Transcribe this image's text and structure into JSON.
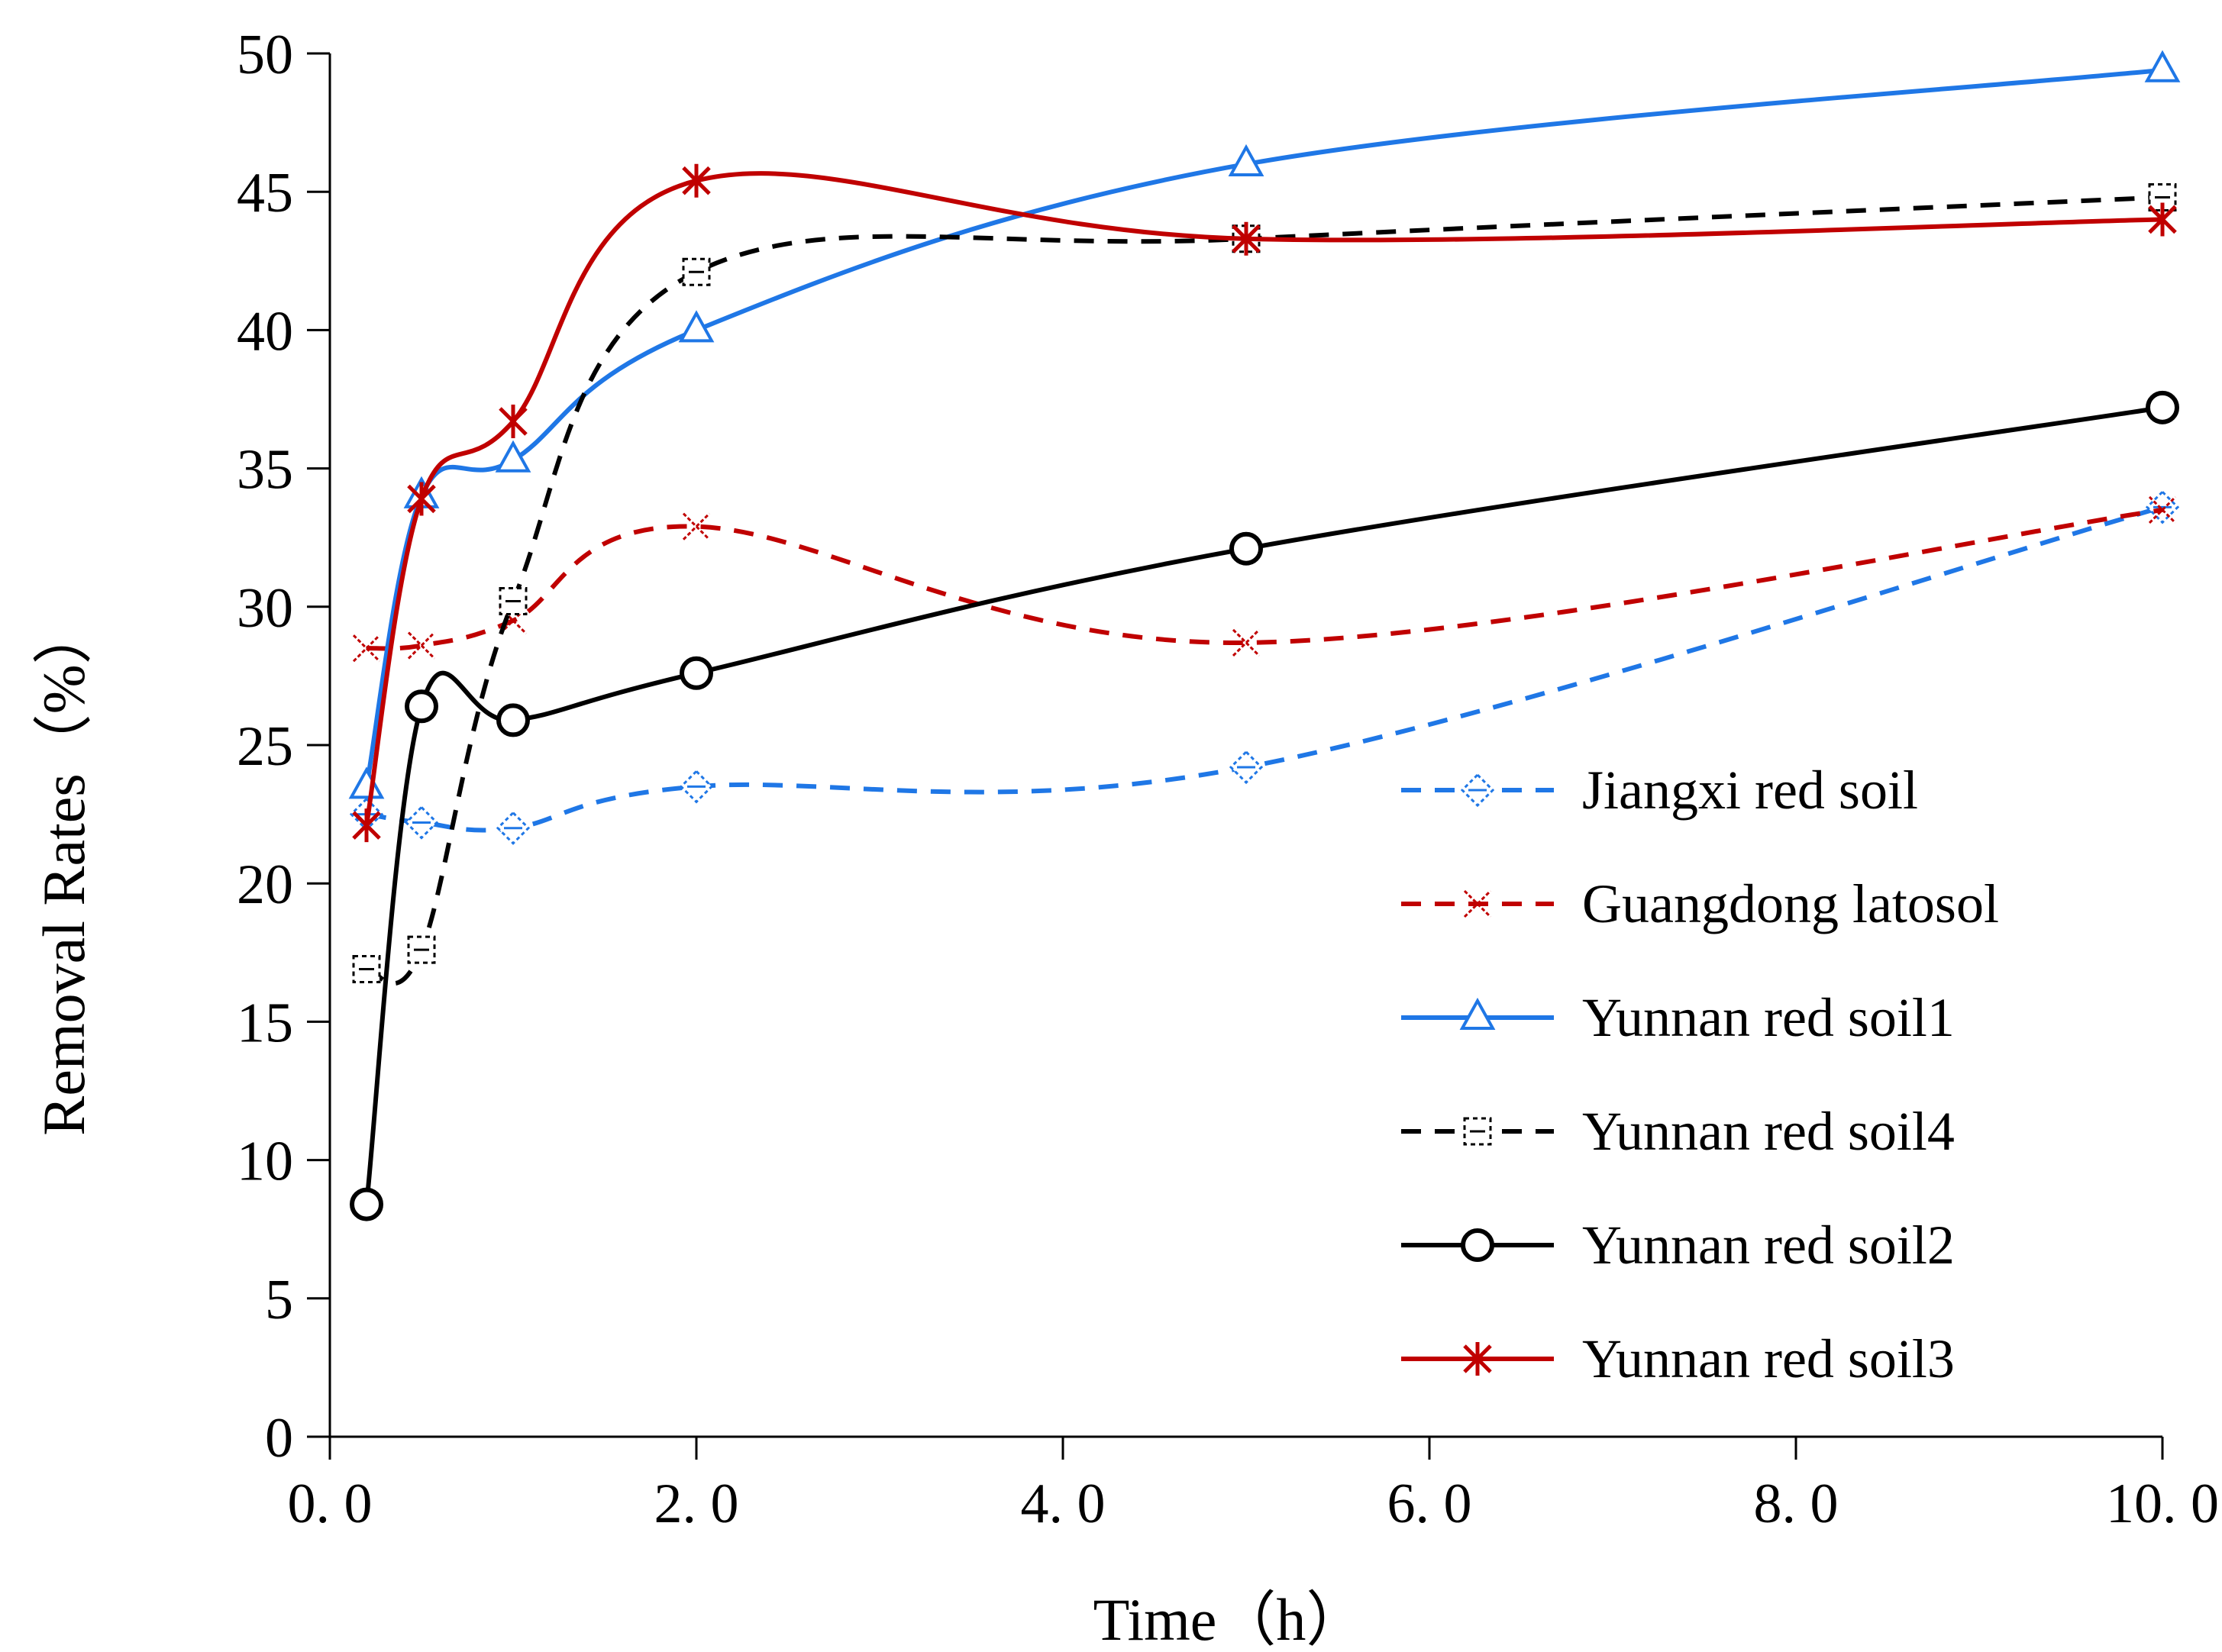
{
  "chart_data": {
    "type": "line",
    "title": "",
    "xlabel": "Time（h）",
    "ylabel": "Removal Rates（%）",
    "xlim": [
      0,
      10
    ],
    "ylim": [
      0,
      50
    ],
    "x_ticks": [
      0,
      2,
      4,
      6,
      8,
      10
    ],
    "x_tick_labels": [
      "0. 0",
      "2. 0",
      "4. 0",
      "6. 0",
      "8. 0",
      "10. 0"
    ],
    "y_ticks": [
      0,
      5,
      10,
      15,
      20,
      25,
      30,
      35,
      40,
      45,
      50
    ],
    "y_tick_labels": [
      "0",
      "5",
      "10",
      "15",
      "20",
      "25",
      "30",
      "35",
      "40",
      "45",
      "50"
    ],
    "grid": false,
    "legend_position": "right",
    "series": [
      {
        "name": "Jiangxi red soil",
        "color": "#1f77e6",
        "dash": true,
        "marker": "diamond",
        "x": [
          0.2,
          0.5,
          1.0,
          2.0,
          5.0,
          10.0
        ],
        "values": [
          22.5,
          22.2,
          22.0,
          23.5,
          24.2,
          33.6
        ]
      },
      {
        "name": "Guangdong latosol",
        "color": "#c00000",
        "dash": true,
        "marker": "x",
        "x": [
          0.2,
          0.5,
          1.0,
          2.0,
          5.0,
          10.0
        ],
        "values": [
          28.5,
          28.6,
          29.5,
          32.9,
          28.7,
          33.5
        ]
      },
      {
        "name": "Yunnan red soil1",
        "color": "#1f77e6",
        "dash": false,
        "marker": "triangle",
        "x": [
          0.2,
          0.5,
          1.0,
          2.0,
          5.0,
          10.0
        ],
        "values": [
          23.5,
          34.0,
          35.3,
          40.0,
          46.0,
          49.4
        ]
      },
      {
        "name": "Yunnan red soil4",
        "color": "#000000",
        "dash": true,
        "marker": "square",
        "x": [
          0.2,
          0.5,
          1.0,
          2.0,
          5.0,
          10.0
        ],
        "values": [
          16.9,
          17.6,
          30.2,
          42.1,
          43.3,
          44.8
        ]
      },
      {
        "name": "Yunnan red soil2",
        "color": "#000000",
        "dash": false,
        "marker": "circle",
        "x": [
          0.2,
          0.5,
          1.0,
          2.0,
          5.0,
          10.0
        ],
        "values": [
          8.4,
          26.4,
          25.9,
          27.6,
          32.1,
          37.2
        ]
      },
      {
        "name": "Yunnan red soil3",
        "color": "#c00000",
        "dash": false,
        "marker": "asterisk",
        "x": [
          0.2,
          0.5,
          1.0,
          2.0,
          5.0,
          10.0
        ],
        "values": [
          22.1,
          33.9,
          36.7,
          45.4,
          43.3,
          44.0
        ]
      }
    ]
  }
}
